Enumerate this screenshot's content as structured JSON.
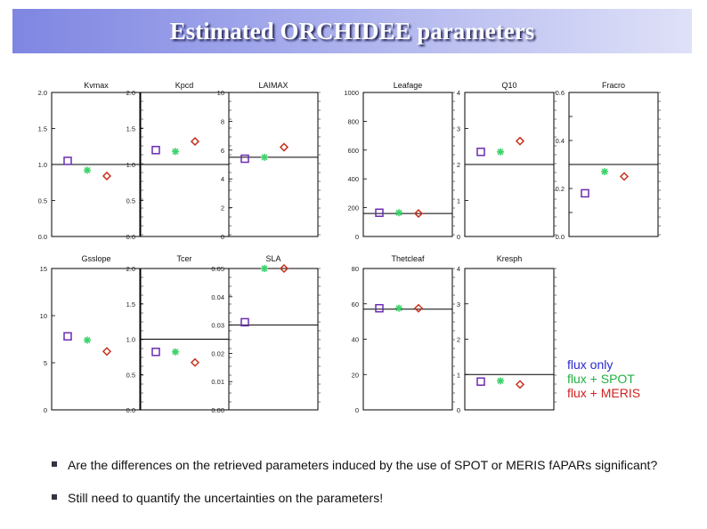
{
  "title": "Estimated ORCHIDEE parameters",
  "colors": {
    "flux_only": "#6a2cb0",
    "flux_spot": "#3cd36a",
    "flux_meris": "#c8321e",
    "title_gradient_start": "#7f86e2",
    "title_gradient_end": "#dfe1f8"
  },
  "legend": [
    {
      "label": "flux only",
      "color": "#2a2ad0"
    },
    {
      "label": "flux + SPOT",
      "color": "#22b040"
    },
    {
      "label": "flux + MERIS",
      "color": "#d21e1e"
    }
  ],
  "bullets": [
    "Are the differences on the retrieved parameters induced by the use of SPOT or MERIS fAPARs significant?",
    "Still need to quantify the uncertainties on the parameters!"
  ],
  "chart_data": [
    {
      "type": "scatter",
      "title": "Kvmax",
      "ylim": [
        0,
        2
      ],
      "yticks": [
        "0.0",
        "0.5",
        "1.0",
        "1.5",
        "2.0"
      ],
      "prior": 1.0,
      "series": [
        {
          "marker": "square",
          "value": 1.05
        },
        {
          "marker": "asterisk",
          "value": 0.92
        },
        {
          "marker": "diamond",
          "value": 0.84
        }
      ]
    },
    {
      "type": "scatter",
      "title": "Kpcd",
      "ylim": [
        0,
        2
      ],
      "yticks": [
        "0.0",
        "0.5",
        "1.0",
        "1.5",
        "2.0"
      ],
      "prior": 1.0,
      "series": [
        {
          "marker": "square",
          "value": 1.2
        },
        {
          "marker": "asterisk",
          "value": 1.18
        },
        {
          "marker": "diamond",
          "value": 1.32
        }
      ]
    },
    {
      "type": "scatter",
      "title": "LAIMAX",
      "ylim": [
        0,
        10
      ],
      "yticks": [
        "0",
        "2",
        "4",
        "6",
        "8",
        "10"
      ],
      "prior": 5.5,
      "series": [
        {
          "marker": "square",
          "value": 5.4
        },
        {
          "marker": "asterisk",
          "value": 5.5
        },
        {
          "marker": "diamond",
          "value": 6.2
        }
      ]
    },
    {
      "type": "scatter",
      "title": "Leafage",
      "ylim": [
        0,
        1000
      ],
      "yticks": [
        "0",
        "200",
        "400",
        "600",
        "800",
        "1000"
      ],
      "prior": 160,
      "series": [
        {
          "marker": "square",
          "value": 165
        },
        {
          "marker": "asterisk",
          "value": 165
        },
        {
          "marker": "diamond",
          "value": 160
        }
      ]
    },
    {
      "type": "scatter",
      "title": "Q10",
      "ylim": [
        0,
        4
      ],
      "yticks": [
        "0",
        "1",
        "2",
        "3",
        "4"
      ],
      "prior": 2.0,
      "series": [
        {
          "marker": "square",
          "value": 2.35
        },
        {
          "marker": "asterisk",
          "value": 2.35
        },
        {
          "marker": "diamond",
          "value": 2.65
        }
      ]
    },
    {
      "type": "scatter",
      "title": "Fracro",
      "ylim": [
        0,
        0.6
      ],
      "yticks": [
        "0.0",
        "",
        "0.2",
        "",
        "0.4",
        "",
        "0.6"
      ],
      "prior": 0.3,
      "series": [
        {
          "marker": "square",
          "value": 0.18
        },
        {
          "marker": "asterisk",
          "value": 0.27
        },
        {
          "marker": "diamond",
          "value": 0.25
        }
      ]
    },
    {
      "type": "scatter",
      "title": "Gsslope",
      "ylim": [
        0,
        15
      ],
      "yticks": [
        "0",
        "5",
        "10",
        "15"
      ],
      "prior": null,
      "series": [
        {
          "marker": "square",
          "value": 7.8
        },
        {
          "marker": "asterisk",
          "value": 7.4
        },
        {
          "marker": "diamond",
          "value": 6.2
        }
      ]
    },
    {
      "type": "scatter",
      "title": "Tcer",
      "ylim": [
        0,
        2
      ],
      "yticks": [
        "0.0",
        "0.5",
        "1.0",
        "1.5",
        "2.0"
      ],
      "prior": 1.0,
      "series": [
        {
          "marker": "square",
          "value": 0.82
        },
        {
          "marker": "asterisk",
          "value": 0.82
        },
        {
          "marker": "diamond",
          "value": 0.67
        }
      ]
    },
    {
      "type": "scatter",
      "title": "SLA",
      "ylim": [
        0,
        0.05
      ],
      "yticks": [
        "0.00",
        "0.01",
        "0.02",
        "0.03",
        "0.04",
        "0.05"
      ],
      "prior": 0.03,
      "series": [
        {
          "marker": "square",
          "value": 0.031
        },
        {
          "marker": "asterisk",
          "value": 0.05
        },
        {
          "marker": "diamond",
          "value": 0.05
        }
      ]
    },
    {
      "type": "scatter",
      "title": "Thetcleaf",
      "ylim": [
        0,
        80
      ],
      "yticks": [
        "0",
        "20",
        "40",
        "60",
        "80"
      ],
      "prior": 57,
      "series": [
        {
          "marker": "square",
          "value": 57.5
        },
        {
          "marker": "asterisk",
          "value": 57.5
        },
        {
          "marker": "diamond",
          "value": 57.5
        }
      ]
    },
    {
      "type": "scatter",
      "title": "Kresph",
      "ylim": [
        0,
        4
      ],
      "yticks": [
        "0",
        "1",
        "2",
        "3",
        "4"
      ],
      "prior": 1.0,
      "series": [
        {
          "marker": "square",
          "value": 0.8
        },
        {
          "marker": "asterisk",
          "value": 0.82
        },
        {
          "marker": "diamond",
          "value": 0.72
        }
      ]
    }
  ]
}
